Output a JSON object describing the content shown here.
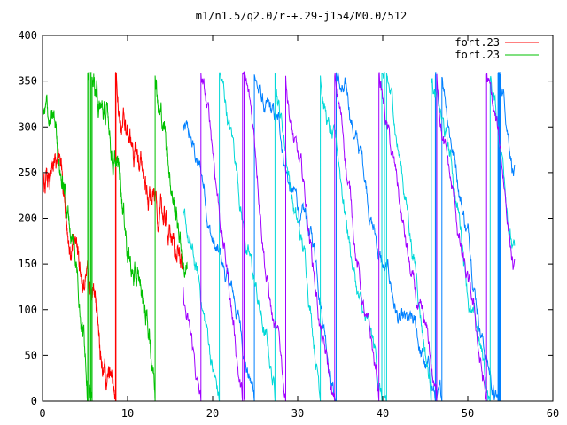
{
  "chart_data": {
    "type": "line",
    "title": "m1/n1.5/q2.0/r-+.29-j154/M0.0/512",
    "xlabel": "",
    "ylabel": "",
    "xlim": [
      0,
      60
    ],
    "ylim": [
      0,
      400
    ],
    "x_ticks": [
      "0",
      "10",
      "20",
      "30",
      "40",
      "50",
      "60"
    ],
    "y_ticks": [
      "0",
      "50",
      "100",
      "150",
      "200",
      "250",
      "300",
      "350",
      "400"
    ],
    "grid": false,
    "legend_position": "top-right",
    "series": [
      {
        "name": "fort.23",
        "color": "#ff0000",
        "x_range": [
          0,
          16.5
        ],
        "start_y": 240,
        "slope": -30,
        "wrap": 360
      },
      {
        "name": "fort.23",
        "color": "#00c000",
        "x_range": [
          0,
          17
        ],
        "start_y": 320,
        "slope": -42,
        "wrap": 360
      }
    ],
    "extra_traces": [
      {
        "color": "#0080ff",
        "x_range": [
          16.5,
          55.5
        ],
        "start_y": 300,
        "slope": -38,
        "wrap": 360
      },
      {
        "color": "#00d8d8",
        "x_range": [
          16.5,
          55.5
        ],
        "start_y": 200,
        "slope": -55,
        "wrap": 360
      },
      {
        "color": "#a000ff",
        "x_range": [
          16.5,
          55.5
        ],
        "start_y": 120,
        "slope": -70,
        "wrap": 360
      }
    ]
  }
}
